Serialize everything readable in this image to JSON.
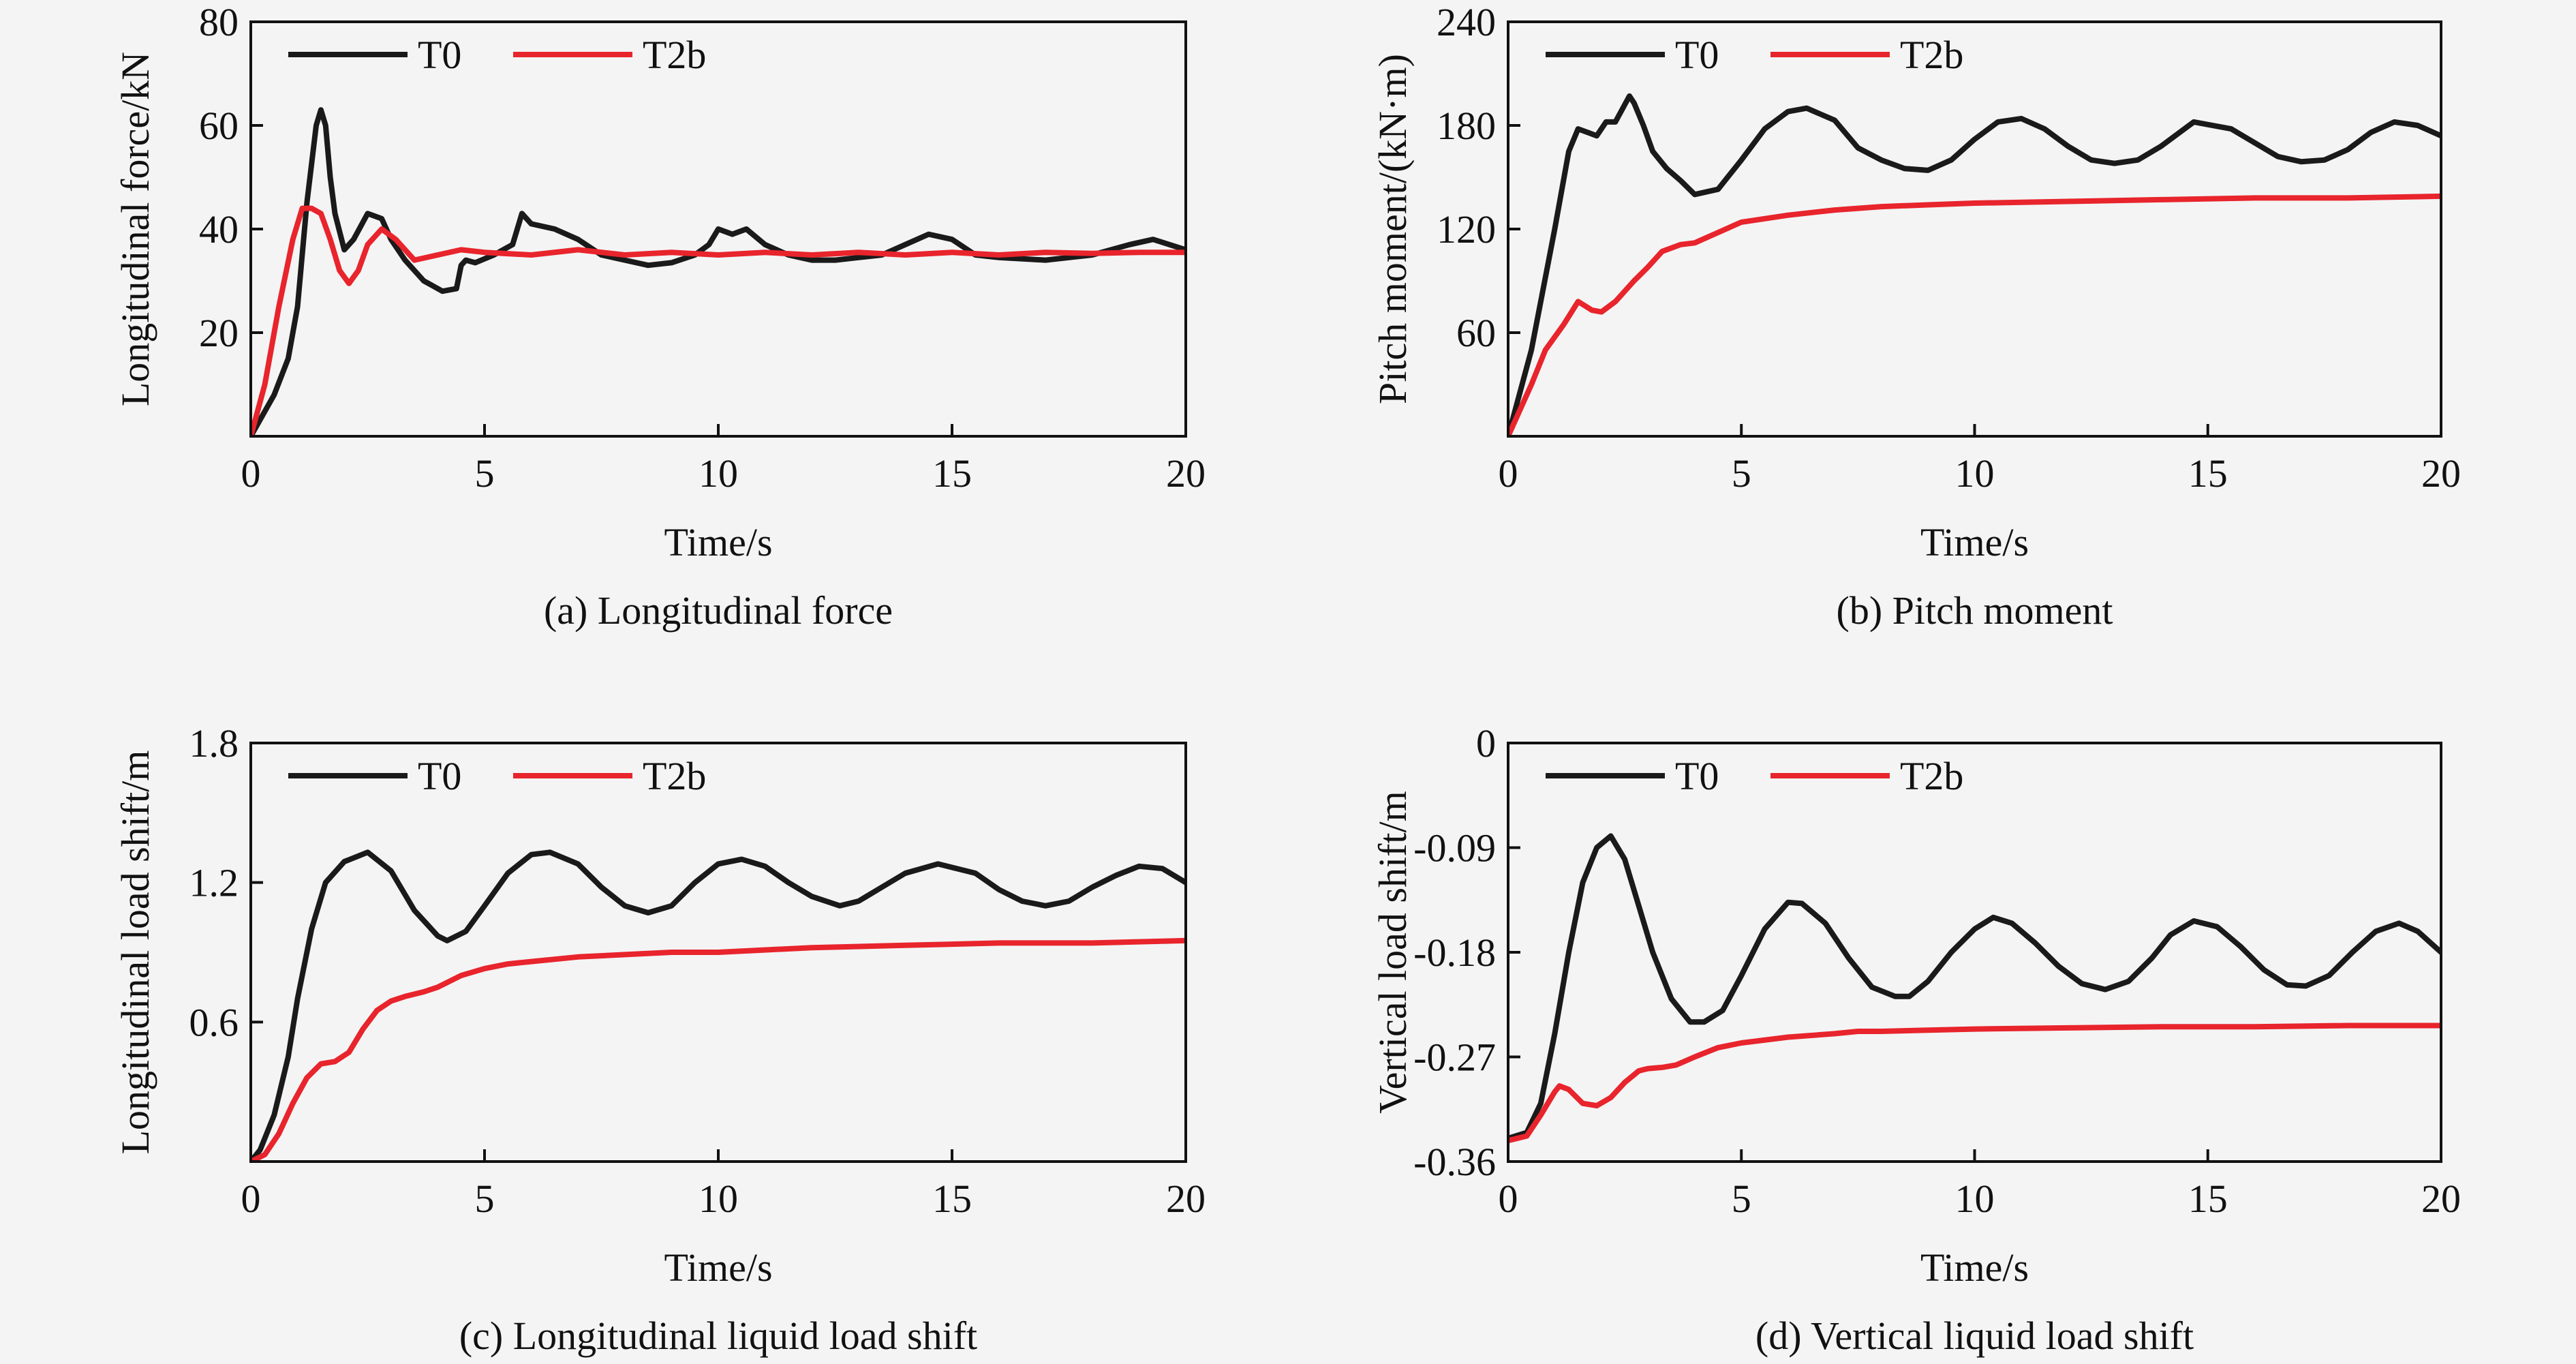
{
  "colors": {
    "T0": "#1a1a1a",
    "T2b": "#e8242c",
    "axis": "#111111",
    "background": "#f4f4f4"
  },
  "chart_data": [
    {
      "type": "line",
      "caption": "(a) Longitudinal force",
      "xlabel": "Time/s",
      "ylabel": "Longitudinal force/kN",
      "xlim": [
        0,
        20
      ],
      "ylim": [
        0,
        80
      ],
      "xticks": [
        "0",
        "5",
        "10",
        "15",
        "20"
      ],
      "yticks": [
        "20",
        "40",
        "60",
        "80"
      ],
      "legend_position": "top-left",
      "series": [
        {
          "name": "T0",
          "color": "#1a1a1a",
          "x": [
            0,
            0.5,
            0.8,
            1.0,
            1.2,
            1.4,
            1.5,
            1.6,
            1.7,
            1.8,
            2.0,
            2.2,
            2.5,
            2.8,
            3.0,
            3.3,
            3.7,
            4.1,
            4.4,
            4.5,
            4.6,
            4.8,
            5.2,
            5.6,
            5.8,
            6.0,
            6.5,
            7.0,
            7.5,
            8.0,
            8.5,
            9.0,
            9.5,
            9.8,
            10.0,
            10.3,
            10.6,
            11.0,
            11.5,
            12.0,
            12.5,
            13.0,
            13.5,
            14.0,
            14.5,
            15.0,
            15.5,
            16.0,
            17.0,
            18.0,
            18.8,
            19.3,
            20.0
          ],
          "y": [
            0,
            8,
            15,
            25,
            45,
            60,
            63,
            60,
            50,
            43,
            36,
            38,
            43,
            42,
            38,
            34,
            30,
            28,
            28.5,
            33,
            34,
            33.5,
            35,
            37,
            43,
            41,
            40,
            38,
            35,
            34,
            33,
            33.5,
            35,
            37,
            40,
            39,
            40,
            37,
            35,
            34,
            34,
            34.5,
            35,
            37,
            39,
            38,
            35,
            34.5,
            34,
            35,
            37,
            38,
            36
          ]
        },
        {
          "name": "T2b",
          "color": "#e8242c",
          "x": [
            0,
            0.3,
            0.6,
            0.9,
            1.1,
            1.3,
            1.5,
            1.7,
            1.9,
            2.1,
            2.3,
            2.5,
            2.8,
            3.1,
            3.5,
            4.0,
            4.5,
            5.0,
            6.0,
            7.0,
            8.0,
            9.0,
            10.0,
            11.0,
            12.0,
            13.0,
            14.0,
            15.0,
            16.0,
            17.0,
            18.0,
            19.0,
            20.0
          ],
          "y": [
            0,
            10,
            25,
            38,
            44,
            44,
            43,
            38,
            32,
            29.5,
            32,
            37,
            40,
            38,
            34,
            35,
            36,
            35.5,
            35,
            36,
            35,
            35.5,
            35,
            35.5,
            35,
            35.5,
            35,
            35.5,
            35,
            35.5,
            35.3,
            35.5,
            35.5
          ]
        }
      ]
    },
    {
      "type": "line",
      "caption": "(b) Pitch moment",
      "xlabel": "Time/s",
      "ylabel": "Pitch moment/(kN·m)",
      "xlim": [
        0,
        20
      ],
      "ylim": [
        0,
        240
      ],
      "xticks": [
        "0",
        "5",
        "10",
        "15",
        "20"
      ],
      "yticks": [
        "60",
        "120",
        "180",
        "240"
      ],
      "legend_position": "top-left",
      "series": [
        {
          "name": "T0",
          "color": "#1a1a1a",
          "x": [
            0,
            0.5,
            1.0,
            1.3,
            1.5,
            1.7,
            1.9,
            2.1,
            2.3,
            2.5,
            2.6,
            2.7,
            2.9,
            3.1,
            3.4,
            3.7,
            4.0,
            4.5,
            5.0,
            5.5,
            6.0,
            6.4,
            7.0,
            7.5,
            8.0,
            8.5,
            9.0,
            9.5,
            10.0,
            10.5,
            11.0,
            11.5,
            12.0,
            12.5,
            13.0,
            13.5,
            14.0,
            14.7,
            15.5,
            16.0,
            16.5,
            17.0,
            17.5,
            18.0,
            18.5,
            19.0,
            19.5,
            20.0
          ],
          "y": [
            0,
            50,
            120,
            165,
            178,
            176,
            174,
            182,
            182,
            192,
            197,
            193,
            180,
            165,
            155,
            148,
            140,
            143,
            160,
            178,
            188,
            190,
            183,
            167,
            160,
            155,
            154,
            160,
            172,
            182,
            184,
            178,
            168,
            160,
            158,
            160,
            168,
            182,
            178,
            170,
            162,
            159,
            160,
            166,
            176,
            182,
            180,
            174
          ]
        },
        {
          "name": "T2b",
          "color": "#e8242c",
          "x": [
            0,
            0.5,
            0.8,
            1.2,
            1.5,
            1.8,
            2.0,
            2.3,
            2.7,
            3.0,
            3.3,
            3.7,
            4.0,
            4.5,
            5.0,
            6.0,
            7.0,
            8.0,
            9.0,
            10.0,
            12.0,
            14.0,
            16.0,
            18.0,
            20.0
          ],
          "y": [
            0,
            30,
            50,
            65,
            78,
            73,
            72,
            78,
            90,
            98,
            107,
            111,
            112,
            118,
            124,
            128,
            131,
            133,
            134,
            135,
            136,
            137,
            138,
            138,
            139
          ]
        }
      ]
    },
    {
      "type": "line",
      "caption": "(c) Longitudinal liquid load shift",
      "xlabel": "Time/s",
      "ylabel": "Longitudinal load shift/m",
      "xlim": [
        0,
        20
      ],
      "ylim": [
        0,
        1.8
      ],
      "xticks": [
        "0",
        "5",
        "10",
        "15",
        "20"
      ],
      "yticks": [
        "0.6",
        "1.2",
        "1.8"
      ],
      "legend_position": "top-left",
      "series": [
        {
          "name": "T0",
          "color": "#1a1a1a",
          "x": [
            0,
            0.2,
            0.5,
            0.8,
            1.0,
            1.3,
            1.6,
            2.0,
            2.5,
            3.0,
            3.5,
            4.0,
            4.2,
            4.6,
            5.0,
            5.5,
            6.0,
            6.4,
            7.0,
            7.5,
            8.0,
            8.5,
            9.0,
            9.5,
            10.0,
            10.5,
            11.0,
            11.5,
            12.0,
            12.6,
            13.0,
            13.5,
            14.0,
            14.7,
            15.5,
            16.0,
            16.5,
            17.0,
            17.5,
            18.0,
            18.5,
            19.0,
            19.5,
            20.0
          ],
          "y": [
            0,
            0.05,
            0.2,
            0.45,
            0.7,
            1.0,
            1.2,
            1.29,
            1.33,
            1.25,
            1.08,
            0.97,
            0.95,
            0.99,
            1.1,
            1.24,
            1.32,
            1.33,
            1.28,
            1.18,
            1.1,
            1.07,
            1.1,
            1.2,
            1.28,
            1.3,
            1.27,
            1.2,
            1.14,
            1.1,
            1.12,
            1.18,
            1.24,
            1.28,
            1.24,
            1.17,
            1.12,
            1.1,
            1.12,
            1.18,
            1.23,
            1.27,
            1.26,
            1.2
          ]
        },
        {
          "name": "T2b",
          "color": "#e8242c",
          "x": [
            0,
            0.3,
            0.6,
            0.9,
            1.2,
            1.5,
            1.8,
            2.1,
            2.4,
            2.7,
            3.0,
            3.3,
            3.7,
            4.0,
            4.5,
            5.0,
            5.5,
            6.0,
            7.0,
            8.0,
            9.0,
            10.0,
            12.0,
            14.0,
            16.0,
            18.0,
            20.0
          ],
          "y": [
            0,
            0.03,
            0.12,
            0.25,
            0.36,
            0.42,
            0.43,
            0.47,
            0.57,
            0.65,
            0.69,
            0.71,
            0.73,
            0.75,
            0.8,
            0.83,
            0.85,
            0.86,
            0.88,
            0.89,
            0.9,
            0.9,
            0.92,
            0.93,
            0.94,
            0.94,
            0.95
          ]
        }
      ]
    },
    {
      "type": "line",
      "caption": "(d) Vertical liquid load shift",
      "xlabel": "Time/s",
      "ylabel": "Vertical load shift/m",
      "xlim": [
        0,
        20
      ],
      "ylim": [
        -0.36,
        0
      ],
      "xticks": [
        "0",
        "5",
        "10",
        "15",
        "20"
      ],
      "yticks": [
        "0",
        "-0.09",
        "-0.18",
        "-0.27",
        "-0.36"
      ],
      "legend_position": "top-left",
      "series": [
        {
          "name": "T0",
          "color": "#1a1a1a",
          "x": [
            0,
            0.4,
            0.7,
            1.0,
            1.3,
            1.6,
            1.9,
            2.2,
            2.5,
            2.8,
            3.1,
            3.5,
            3.9,
            4.2,
            4.6,
            5.0,
            5.5,
            6.0,
            6.3,
            6.8,
            7.3,
            7.8,
            8.3,
            8.6,
            9.0,
            9.5,
            10.0,
            10.4,
            10.8,
            11.3,
            11.8,
            12.3,
            12.8,
            13.3,
            13.8,
            14.2,
            14.7,
            15.2,
            15.7,
            16.2,
            16.7,
            17.1,
            17.6,
            18.1,
            18.6,
            19.1,
            19.5,
            20.0
          ],
          "y": [
            -0.34,
            -0.335,
            -0.31,
            -0.25,
            -0.18,
            -0.12,
            -0.09,
            -0.08,
            -0.1,
            -0.14,
            -0.18,
            -0.22,
            -0.24,
            -0.24,
            -0.23,
            -0.2,
            -0.16,
            -0.137,
            -0.138,
            -0.155,
            -0.185,
            -0.21,
            -0.218,
            -0.218,
            -0.205,
            -0.18,
            -0.16,
            -0.15,
            -0.155,
            -0.172,
            -0.192,
            -0.207,
            -0.212,
            -0.205,
            -0.185,
            -0.165,
            -0.153,
            -0.158,
            -0.175,
            -0.195,
            -0.208,
            -0.209,
            -0.2,
            -0.18,
            -0.162,
            -0.155,
            -0.162,
            -0.18
          ]
        },
        {
          "name": "T2b",
          "color": "#e8242c",
          "x": [
            0,
            0.4,
            0.7,
            1.0,
            1.1,
            1.3,
            1.6,
            1.9,
            2.2,
            2.5,
            2.8,
            3.0,
            3.3,
            3.6,
            4.0,
            4.5,
            5.0,
            6.0,
            7.0,
            7.5,
            8.0,
            9.0,
            10.0,
            12.0,
            14.0,
            16.0,
            18.0,
            20.0
          ],
          "y": [
            -0.342,
            -0.338,
            -0.32,
            -0.3,
            -0.295,
            -0.298,
            -0.31,
            -0.312,
            -0.305,
            -0.292,
            -0.282,
            -0.28,
            -0.279,
            -0.277,
            -0.27,
            -0.262,
            -0.258,
            -0.253,
            -0.25,
            -0.248,
            -0.248,
            -0.247,
            -0.246,
            -0.245,
            -0.244,
            -0.244,
            -0.243,
            -0.243
          ]
        }
      ]
    }
  ]
}
